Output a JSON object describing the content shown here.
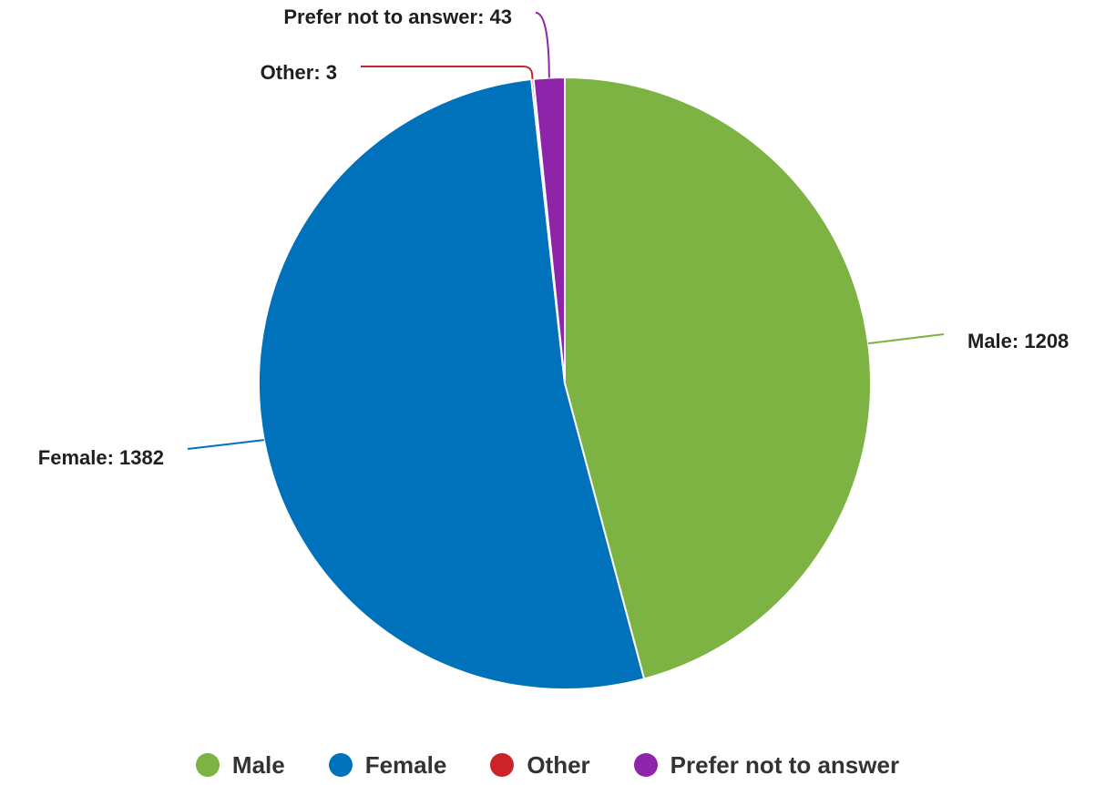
{
  "chart_data": {
    "type": "pie",
    "categories": [
      "Male",
      "Female",
      "Other",
      "Prefer not to answer"
    ],
    "values": [
      1208,
      1382,
      3,
      43
    ],
    "colors": [
      "#7cb342",
      "#0072bb",
      "#cc2229",
      "#8e24aa"
    ],
    "data_labels": [
      "Male: 1208",
      "Female: 1382",
      "Other: 3",
      "Prefer not to answer: 43"
    ],
    "legend_position": "bottom"
  },
  "legend": {
    "items": [
      {
        "label": "Male",
        "color": "#7cb342"
      },
      {
        "label": "Female",
        "color": "#0072bb"
      },
      {
        "label": "Other",
        "color": "#cc2229"
      },
      {
        "label": "Prefer not to answer",
        "color": "#8e24aa"
      }
    ]
  }
}
